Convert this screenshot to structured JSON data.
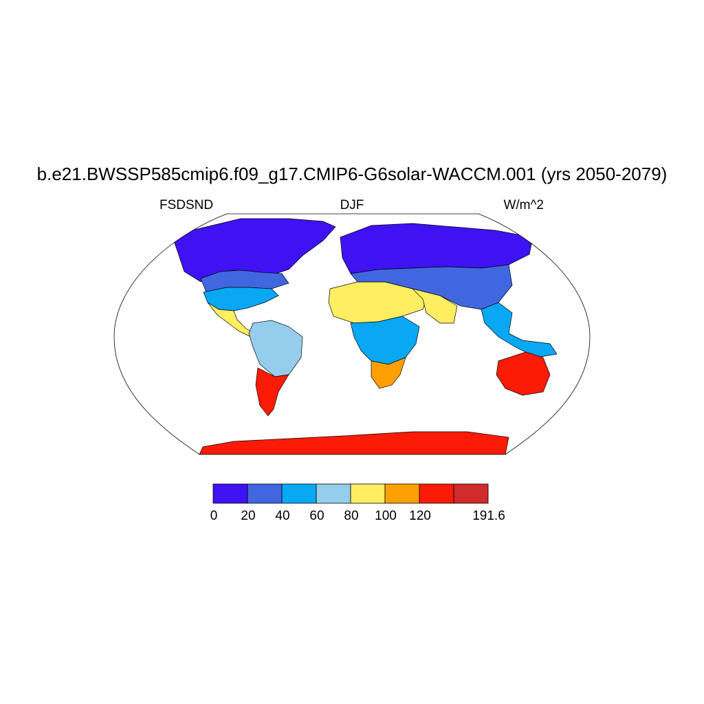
{
  "figure": {
    "title": "b.e21.BWSSP585cmip6.f09_g17.CMIP6-G6solar-WACCM.001 (yrs 2050-2079)",
    "left_label": "FSDSND",
    "center_label": "DJF",
    "right_label": "W/m^2"
  },
  "map": {
    "projection": "Robinson",
    "variable": "FSDSND",
    "season": "DJF",
    "units": "W/m^2",
    "fill": "land only, ocean blank",
    "regions": [
      {
        "name": "Arctic North America",
        "level": 10
      },
      {
        "name": "Canada south",
        "level": 30
      },
      {
        "name": "USA",
        "level": 50
      },
      {
        "name": "Mexico",
        "level": 90
      },
      {
        "name": "Amazon",
        "level": 60
      },
      {
        "name": "Patagonia",
        "level": 140
      },
      {
        "name": "Sahara",
        "level": 90
      },
      {
        "name": "Central Africa",
        "level": 50
      },
      {
        "name": "Southern Africa",
        "level": 110
      },
      {
        "name": "Siberia",
        "level": 10
      },
      {
        "name": "Central Asia",
        "level": 30
      },
      {
        "name": "Arabia",
        "level": 90
      },
      {
        "name": "Southeast Asia",
        "level": 40
      },
      {
        "name": "Australia",
        "level": 130
      },
      {
        "name": "Antarctica",
        "level": 130
      }
    ]
  },
  "colorbar": {
    "levels": [
      0,
      20,
      40,
      60,
      80,
      100,
      120,
      191.6
    ],
    "colors": [
      "#3e12f2",
      "#4167e0",
      "#09a8f5",
      "#95cdec",
      "#ffed62",
      "#fea002",
      "#fc1b07",
      "#d22b2b"
    ],
    "tick_labels": [
      "0",
      "20",
      "40",
      "60",
      "80",
      "100",
      "120",
      "191.6"
    ]
  }
}
